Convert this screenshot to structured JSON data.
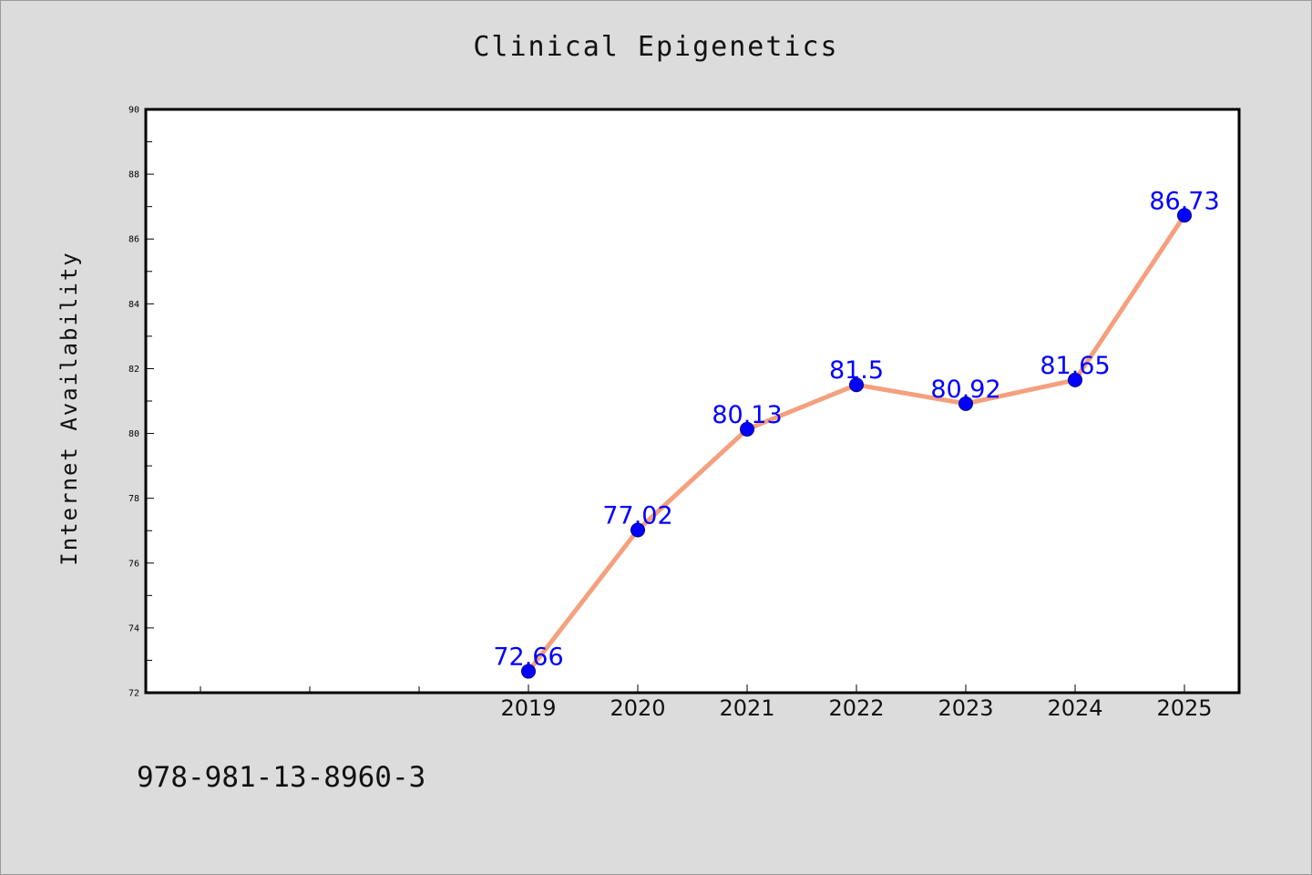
{
  "title": "Clinical Epigenetics",
  "footer_text": "978-981-13-8960-3",
  "colors": {
    "background": "#dcdcdc",
    "line": "#f4a07e",
    "marker": "#0000ff",
    "label": "#0000ff"
  },
  "chart_data": {
    "type": "line",
    "title": "Clinical Epigenetics",
    "xlabel": "",
    "ylabel": "Internet Availability",
    "x": [
      "2019",
      "2020",
      "2021",
      "2022",
      "2023",
      "2024",
      "2025"
    ],
    "series": [
      {
        "values": [
          72.66,
          77.02,
          80.13,
          81.5,
          80.92,
          81.65,
          86.73
        ],
        "labels": [
          "72.66",
          "77.02",
          "80.13",
          "81.5",
          "80.92",
          "81.65",
          "86.73"
        ]
      }
    ],
    "ylim": [
      72,
      90
    ],
    "yticks": [
      "72",
      "74",
      "76",
      "78",
      "80",
      "82",
      "84",
      "86",
      "88",
      "90"
    ],
    "grid": false,
    "legend": "none"
  }
}
